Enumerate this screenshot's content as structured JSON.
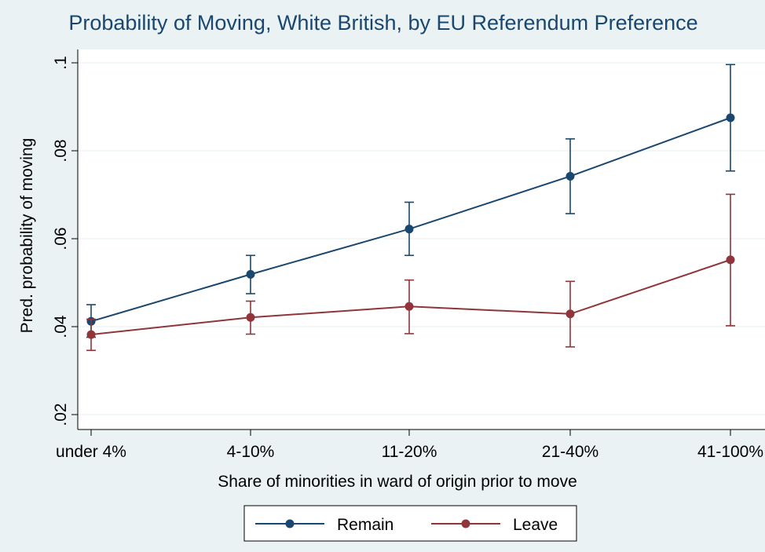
{
  "chart_data": {
    "type": "line",
    "title": "Probability of Moving, White British, by EU Referendum Preference",
    "xlabel": "Share of minorities in ward of origin prior to move",
    "ylabel": "Pred. probability of moving",
    "categories": [
      "under 4%",
      "4-10%",
      "11-20%",
      "21-40%",
      "41-100%"
    ],
    "ylim": [
      0.02,
      0.1
    ],
    "yticks": [
      {
        "value": 0.02,
        "label": ".02"
      },
      {
        "value": 0.04,
        "label": ".04"
      },
      {
        "value": 0.06,
        "label": ".06"
      },
      {
        "value": 0.08,
        "label": ".08"
      },
      {
        "value": 0.1,
        "label": ".1"
      }
    ],
    "grid": true,
    "legend_position": "bottom",
    "series": [
      {
        "name": "Remain",
        "color": "#1a476f",
        "values": [
          0.0412,
          0.0519,
          0.0622,
          0.0742,
          0.0875
        ],
        "ci_low": [
          0.0376,
          0.0475,
          0.0562,
          0.0657,
          0.0754
        ],
        "ci_high": [
          0.045,
          0.0562,
          0.0683,
          0.0827,
          0.0996
        ]
      },
      {
        "name": "Leave",
        "color": "#90353b",
        "values": [
          0.0382,
          0.0421,
          0.0446,
          0.0429,
          0.0552
        ],
        "ci_low": [
          0.0346,
          0.0383,
          0.0384,
          0.0354,
          0.0402
        ],
        "ci_high": [
          0.0417,
          0.0458,
          0.0506,
          0.0503,
          0.0701
        ]
      }
    ]
  }
}
